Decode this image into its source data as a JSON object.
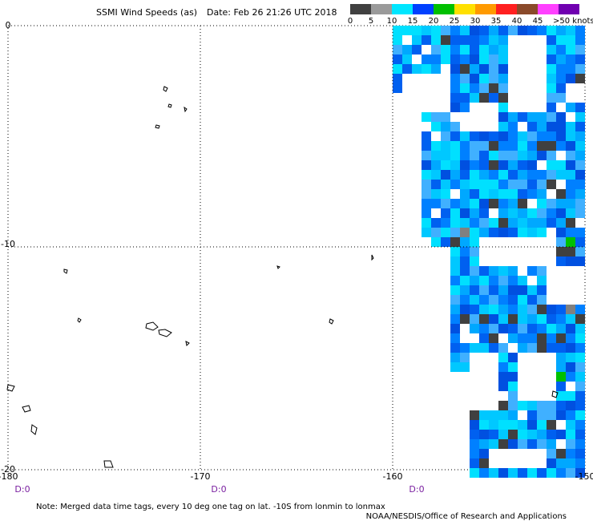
{
  "header": {
    "title": "SSMI Wind Speeds (as)",
    "date": "Date: Feb 26 21:26 UTC 2018"
  },
  "legend": {
    "labels": [
      "0",
      "5",
      "10",
      "15",
      "20",
      "25",
      "30",
      "35",
      "40",
      "45",
      ">50 knots"
    ]
  },
  "axes": {
    "lat_labels": [
      "0",
      "-10",
      "-20"
    ],
    "lon_labels": [
      "-180",
      "-170",
      "-160",
      "-150"
    ]
  },
  "time_tags": [
    "D:0",
    "D:0",
    "D:0"
  ],
  "footer": {
    "note": "Note:  Merged data time tags, every 10 deg one tag on lat. -10S from lonmin to lonmax",
    "credit": "NOAA/NESDIS/Office of Research and Applications"
  }
}
